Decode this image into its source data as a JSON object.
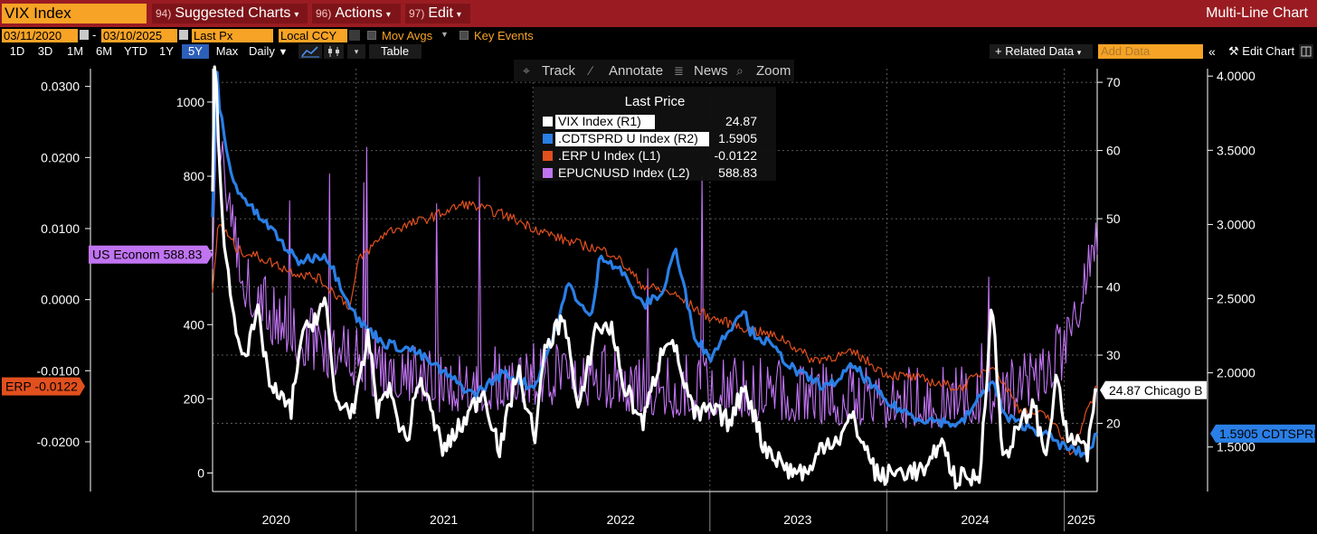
{
  "titlebar": {
    "ticker": "VIX Index",
    "menus": [
      {
        "num": "94)",
        "label": "Suggested Charts"
      },
      {
        "num": "96)",
        "label": "Actions"
      },
      {
        "num": "97)",
        "label": "Edit"
      }
    ],
    "right_title": "Multi-Line Chart"
  },
  "controls": {
    "date_start": "03/11/2020",
    "date_end": "03/10/2025",
    "price_field": "Last Px",
    "currency": "Local CCY",
    "mov_avgs": "Mov Avgs",
    "key_events": "Key Events"
  },
  "ranges": [
    "1D",
    "3D",
    "1M",
    "6M",
    "YTD",
    "1Y",
    "5Y",
    "Max"
  ],
  "selected_range": "5Y",
  "periodicity": "Daily",
  "table_label": "Table",
  "related_data": "Related Data",
  "add_data_placeholder": "Add Data",
  "edit_chart": "Edit Chart",
  "chart_toolbar": [
    "Track",
    "Annotate",
    "News",
    "Zoom"
  ],
  "colors": {
    "vix": "#ffffff",
    "cdtsprd": "#2a7fe6",
    "erp": "#e2501e",
    "epuc": "#c174f2",
    "title_bar": "#9a1c22",
    "accent": "#f7a326"
  },
  "chart_data": {
    "type": "line",
    "legend": {
      "title": "Last Price",
      "entries": [
        {
          "name": "VIX Index  (R1)",
          "value": "24.87",
          "color": "#ffffff"
        },
        {
          "name": ".CDTSPRD U Index  (R2)",
          "value": "1.5905",
          "color": "#2a7fe6"
        },
        {
          "name": ".ERP U Index  (L1)",
          "value": "-0.0122",
          "color": "#e2501e"
        },
        {
          "name": "EPUCNUSD Index  (L2)",
          "value": "588.83",
          "color": "#c174f2"
        }
      ]
    },
    "x_axis": {
      "start": "2020-03-11",
      "end": "2025-03-10",
      "ticks": [
        "2020",
        "2021",
        "2022",
        "2023",
        "2024",
        "2025"
      ]
    },
    "axes": {
      "L1": {
        "min": -0.027,
        "max": 0.0325,
        "ticks": [
          "0.0300",
          "0.0200",
          "0.0100",
          "0.0000",
          "-0.0100",
          "-0.0200"
        ],
        "tick_values": [
          0.03,
          0.02,
          0.01,
          0,
          -0.01,
          -0.02
        ]
      },
      "L2": {
        "min": -50,
        "max": 1090,
        "ticks": [
          "1000",
          "800",
          "600",
          "400",
          "200",
          "0"
        ],
        "tick_values": [
          1000,
          800,
          600,
          400,
          200,
          0
        ]
      },
      "R1": {
        "min": 10,
        "max": 72,
        "ticks": [
          "70",
          "60",
          "50",
          "40",
          "30",
          "20"
        ],
        "tick_values": [
          70,
          60,
          50,
          40,
          30,
          20
        ]
      },
      "R2": {
        "min": 1.2,
        "max": 4.05,
        "ticks": [
          "4.0000",
          "3.5000",
          "3.0000",
          "2.5000",
          "2.0000",
          "1.5000"
        ],
        "tick_values": [
          4,
          3.5,
          3,
          2.5,
          2,
          1.5
        ]
      }
    },
    "tags": [
      {
        "text": "US Econom 588.83",
        "axis": "L2",
        "value": 588.83,
        "color": "#c174f2"
      },
      {
        "text": "ERP -0.0122",
        "axis": "L1",
        "value": -0.0122,
        "color": "#e2501e"
      },
      {
        "text": "24.87 Chicago B",
        "axis": "R1",
        "value": 24.87,
        "color": "#ffffff"
      },
      {
        "text": "1.5905 CDTSPRD",
        "axis": "R2",
        "value": 1.5905,
        "color": "#2a7fe6"
      }
    ],
    "series": [
      {
        "name": "VIX Index",
        "axis": "R1",
        "color": "#ffffff",
        "width": 3.2,
        "x": [
          "2020-03-11",
          "2020-03-16",
          "2020-03-23",
          "2020-04-06",
          "2020-04-27",
          "2020-05-20",
          "2020-06-12",
          "2020-07-10",
          "2020-08-20",
          "2020-09-08",
          "2020-10-29",
          "2020-11-20",
          "2020-12-30",
          "2021-01-27",
          "2021-02-16",
          "2021-03-04",
          "2021-04-15",
          "2021-05-12",
          "2021-06-30",
          "2021-08-19",
          "2021-09-20",
          "2021-10-25",
          "2021-11-30",
          "2022-01-04",
          "2022-01-27",
          "2022-03-07",
          "2022-04-05",
          "2022-05-09",
          "2022-06-13",
          "2022-07-05",
          "2022-08-16",
          "2022-09-29",
          "2022-10-12",
          "2022-11-30",
          "2023-01-03",
          "2023-02-14",
          "2023-03-13",
          "2023-04-20",
          "2023-06-15",
          "2023-08-01",
          "2023-08-18",
          "2023-09-29",
          "2023-10-20",
          "2023-12-15",
          "2024-01-31",
          "2024-03-28",
          "2024-04-19",
          "2024-05-20",
          "2024-07-10",
          "2024-08-05",
          "2024-08-27",
          "2024-10-30",
          "2024-11-22",
          "2024-12-18",
          "2025-01-08",
          "2025-01-27",
          "2025-02-18",
          "2025-03-03",
          "2025-03-10"
        ],
        "y": [
          54,
          75,
          61,
          45,
          34,
          30,
          36,
          25,
          22,
          32,
          38,
          23,
          22,
          33,
          21,
          26,
          17,
          27,
          16,
          21,
          25,
          16,
          28,
          18,
          31,
          36,
          21,
          34,
          34,
          26,
          20,
          32,
          33,
          21,
          22,
          20,
          26,
          17,
          13,
          13,
          17,
          18,
          21,
          12,
          13,
          13,
          18,
          12,
          12,
          38,
          15,
          23,
          15,
          27,
          17,
          18,
          15,
          23,
          24.87
        ]
      },
      {
        "name": ".CDTSPRD U Index",
        "axis": "R2",
        "color": "#2a7fe6",
        "width": 3.2,
        "x": [
          "2020-03-11",
          "2020-03-20",
          "2020-03-25",
          "2020-04-20",
          "2020-06-01",
          "2020-07-15",
          "2020-09-01",
          "2020-10-30",
          "2021-01-06",
          "2021-03-01",
          "2021-05-01",
          "2021-07-01",
          "2021-09-01",
          "2021-11-01",
          "2022-01-03",
          "2022-02-18",
          "2022-03-15",
          "2022-05-01",
          "2022-05-20",
          "2022-06-30",
          "2022-08-15",
          "2022-09-28",
          "2022-10-20",
          "2022-12-01",
          "2023-01-01",
          "2023-03-13",
          "2023-03-20",
          "2023-05-01",
          "2023-07-01",
          "2023-09-01",
          "2023-10-25",
          "2023-12-31",
          "2024-03-01",
          "2024-06-01",
          "2024-08-05",
          "2024-09-01",
          "2024-11-15",
          "2025-01-01",
          "2025-02-15",
          "2025-03-10"
        ],
        "y": [
          3.05,
          4.05,
          3.8,
          3.3,
          3.1,
          2.95,
          2.75,
          2.8,
          2.35,
          2.2,
          2.15,
          2.0,
          1.85,
          2.0,
          1.9,
          2.3,
          2.6,
          2.35,
          2.8,
          2.7,
          2.45,
          2.55,
          2.85,
          2.25,
          2.1,
          2.45,
          2.3,
          2.2,
          2.0,
          1.9,
          2.05,
          1.8,
          1.7,
          1.65,
          1.95,
          1.7,
          1.6,
          1.5,
          1.45,
          1.5905
        ]
      },
      {
        "name": ".ERP U Index",
        "axis": "L1",
        "color": "#e2501e",
        "width": 1.2,
        "x": [
          "2020-03-11",
          "2020-03-23",
          "2020-05-01",
          "2020-06-15",
          "2020-08-20",
          "2020-10-15",
          "2020-12-20",
          "2021-01-06",
          "2021-03-04",
          "2021-06-01",
          "2021-08-15",
          "2021-11-01",
          "2021-12-20",
          "2022-03-01",
          "2022-06-16",
          "2022-08-15",
          "2022-10-12",
          "2023-01-01",
          "2023-03-15",
          "2023-06-01",
          "2023-08-01",
          "2023-10-27",
          "2023-12-31",
          "2024-03-01",
          "2024-06-01",
          "2024-08-05",
          "2024-10-01",
          "2024-12-01",
          "2025-01-15",
          "2025-03-10"
        ],
        "y": [
          0.001,
          0.011,
          0.007,
          0.006,
          0.004,
          0.003,
          -0.001,
          0.0055,
          0.0095,
          0.0115,
          0.0135,
          0.012,
          0.0105,
          0.0085,
          0.0065,
          0.002,
          0.001,
          -0.0025,
          -0.004,
          -0.0055,
          -0.0085,
          -0.0075,
          -0.0105,
          -0.011,
          -0.0125,
          -0.009,
          -0.0155,
          -0.0165,
          -0.0215,
          -0.0122
        ]
      },
      {
        "name": "EPUCNUSD Index",
        "axis": "L2",
        "color": "#c174f2",
        "width": 1.1,
        "x": [
          "2020-03-11",
          "2020-03-20",
          "2020-05-15",
          "2020-07-01",
          "2020-09-01",
          "2020-11-01",
          "2021-01-01",
          "2021-03-01",
          "2021-06-01",
          "2021-09-01",
          "2021-12-01",
          "2022-03-01",
          "2022-06-01",
          "2022-09-01",
          "2022-12-01",
          "2023-03-01",
          "2023-06-01",
          "2023-09-01",
          "2023-12-01",
          "2024-03-01",
          "2024-06-01",
          "2024-09-01",
          "2024-12-01",
          "2025-01-15",
          "2025-02-15",
          "2025-03-10"
        ],
        "y": [
          550,
          900,
          480,
          400,
          340,
          300,
          270,
          230,
          210,
          200,
          205,
          230,
          220,
          200,
          185,
          190,
          180,
          170,
          165,
          160,
          165,
          185,
          250,
          320,
          520,
          588.83
        ]
      }
    ]
  }
}
